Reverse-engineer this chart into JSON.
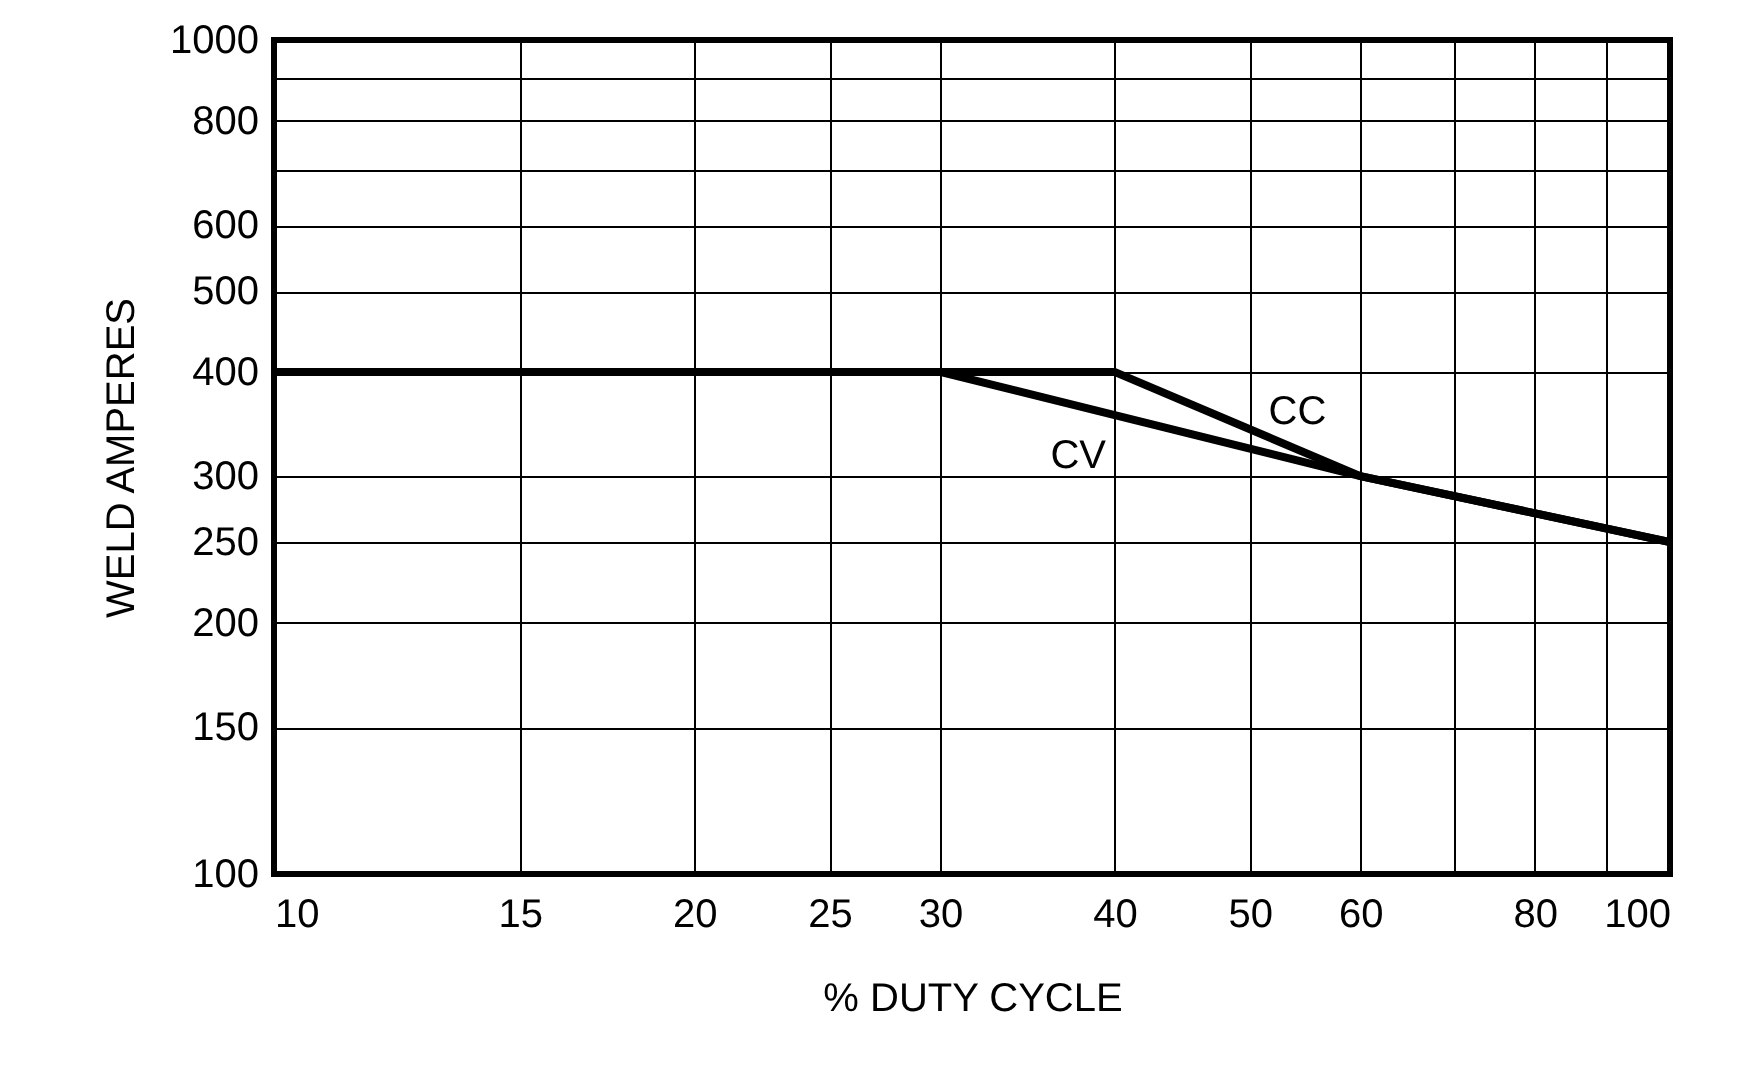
{
  "chart_data": {
    "type": "line",
    "xlabel": "% DUTY CYCLE",
    "ylabel": "WELD AMPERES",
    "log": "xy",
    "grid": true,
    "line_style": "solid",
    "xlim": [
      10,
      100
    ],
    "ylim": [
      100,
      1000
    ],
    "xticks": [
      10,
      15,
      20,
      25,
      30,
      40,
      50,
      60,
      {
        "value": 70,
        "label": null
      },
      80,
      {
        "value": 90,
        "label": null
      },
      100
    ],
    "yticks": [
      100,
      150,
      200,
      250,
      300,
      400,
      500,
      600,
      {
        "value": 700,
        "label": null
      },
      800,
      {
        "value": 900,
        "label": null
      },
      1000
    ],
    "series": [
      {
        "name": "CC",
        "color": "#000000",
        "x": [
          10,
          40,
          60,
          100
        ],
        "values": [
          400,
          400,
          300,
          250
        ]
      },
      {
        "name": "CV",
        "color": "#000000",
        "x": [
          10,
          30,
          60,
          100
        ],
        "values": [
          400,
          400,
          300,
          250
        ]
      }
    ]
  }
}
